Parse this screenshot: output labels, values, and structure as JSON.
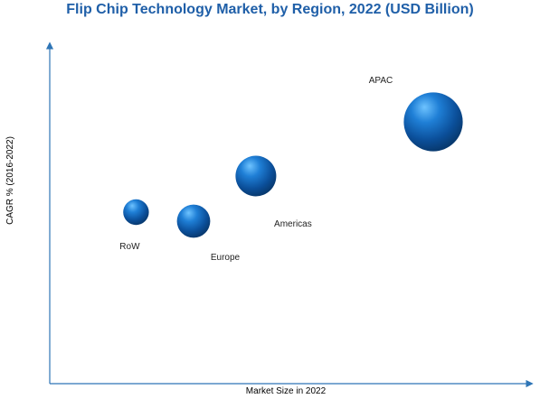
{
  "chart_data": {
    "type": "scatter",
    "title": "Flip Chip Technology Market, by Region, 2022 (USD Billion)",
    "xlabel": "Market Size in 2022",
    "ylabel": "CAGR % (2016-2022)",
    "grid": false,
    "legend": "none",
    "axis_color": "#2e75b6",
    "bubble_color": "#1f6fbf",
    "series": [
      {
        "points": [
          {
            "label": "RoW",
            "x": 1.8,
            "y": 3.8,
            "size": 1.2
          },
          {
            "label": "Europe",
            "x": 3.0,
            "y": 3.6,
            "size": 2.0
          },
          {
            "label": "Americas",
            "x": 4.3,
            "y": 4.6,
            "size": 3.0
          },
          {
            "label": "APAC",
            "x": 8.0,
            "y": 5.8,
            "size": 6.3
          }
        ]
      }
    ],
    "xlim": [
      0,
      10
    ],
    "ylim": [
      0,
      7.5
    ]
  }
}
